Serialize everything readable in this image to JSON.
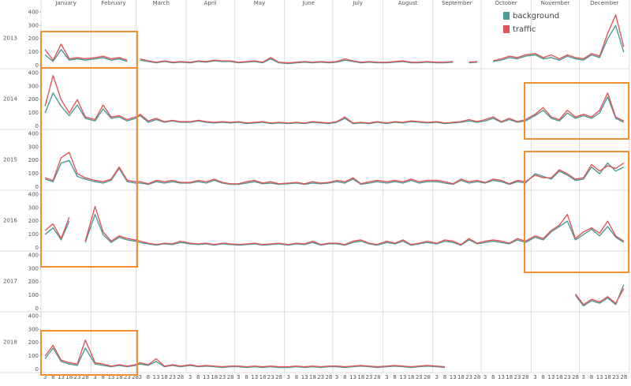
{
  "chart_data": {
    "type": "line",
    "categories": [
      "January",
      "February",
      "March",
      "April",
      "May",
      "June",
      "July",
      "August",
      "September",
      "October",
      "November",
      "December"
    ],
    "days": [
      3,
      8,
      13,
      18,
      23,
      28
    ],
    "ylim": [
      0,
      420
    ],
    "yticks": [
      0,
      100,
      200,
      300,
      400
    ],
    "legend": "top-right",
    "series": [
      {
        "name": "background",
        "color": "#4e9a96"
      },
      {
        "name": "traffic",
        "color": "#e15759"
      }
    ],
    "panels": [
      {
        "label": "2013",
        "series": [
          {
            "values": [
              80,
              30,
              120,
              40,
              50,
              40,
              50,
              60,
              40,
              50,
              30,
              null,
              40,
              30,
              20,
              30,
              20,
              25,
              20,
              30,
              25,
              35,
              30,
              30,
              20,
              25,
              30,
              20,
              50,
              20,
              15,
              20,
              25,
              20,
              25,
              20,
              25,
              40,
              30,
              20,
              25,
              20,
              20,
              25,
              30,
              20,
              20,
              25,
              20,
              20,
              25,
              null,
              20,
              25,
              null,
              30,
              40,
              60,
              50,
              70,
              80,
              50,
              60,
              40,
              70,
              50,
              40,
              80,
              60,
              200,
              300,
              100
            ]
          },
          {
            "values": [
              120,
              40,
              160,
              50,
              60,
              50,
              60,
              70,
              50,
              60,
              40,
              null,
              50,
              35,
              25,
              35,
              25,
              30,
              25,
              35,
              30,
              40,
              35,
              35,
              25,
              30,
              35,
              25,
              60,
              25,
              20,
              25,
              30,
              25,
              30,
              25,
              30,
              50,
              35,
              25,
              30,
              25,
              25,
              30,
              35,
              25,
              25,
              30,
              25,
              25,
              30,
              null,
              25,
              30,
              null,
              35,
              50,
              70,
              60,
              80,
              90,
              60,
              80,
              50,
              80,
              60,
              50,
              90,
              70,
              240,
              380,
              140
            ]
          }
        ]
      },
      {
        "label": "2014",
        "series": [
          {
            "values": [
              100,
              250,
              150,
              80,
              160,
              60,
              40,
              130,
              60,
              70,
              40,
              60,
              80,
              30,
              50,
              30,
              40,
              30,
              30,
              40,
              30,
              25,
              30,
              25,
              30,
              20,
              25,
              30,
              20,
              25,
              20,
              25,
              20,
              30,
              25,
              20,
              30,
              60,
              20,
              25,
              20,
              30,
              20,
              30,
              25,
              35,
              30,
              25,
              30,
              20,
              25,
              30,
              40,
              30,
              40,
              60,
              30,
              50,
              30,
              40,
              80,
              120,
              60,
              40,
              100,
              60,
              80,
              60,
              100,
              220,
              60,
              30
            ]
          },
          {
            "values": [
              150,
              380,
              200,
              100,
              200,
              70,
              50,
              160,
              70,
              80,
              50,
              70,
              90,
              40,
              60,
              35,
              45,
              35,
              35,
              45,
              35,
              30,
              35,
              30,
              35,
              25,
              30,
              35,
              25,
              30,
              25,
              30,
              25,
              35,
              30,
              25,
              35,
              70,
              25,
              30,
              25,
              35,
              25,
              35,
              30,
              40,
              35,
              30,
              35,
              25,
              30,
              35,
              50,
              35,
              50,
              70,
              35,
              60,
              35,
              50,
              90,
              140,
              70,
              50,
              120,
              70,
              90,
              70,
              120,
              250,
              70,
              40
            ]
          }
        ]
      },
      {
        "label": "2015",
        "series": [
          {
            "values": [
              60,
              40,
              180,
              200,
              80,
              60,
              40,
              30,
              50,
              140,
              40,
              30,
              30,
              20,
              40,
              30,
              40,
              30,
              30,
              40,
              30,
              50,
              30,
              20,
              20,
              30,
              40,
              25,
              30,
              20,
              25,
              30,
              20,
              30,
              25,
              30,
              40,
              30,
              60,
              20,
              30,
              40,
              30,
              40,
              30,
              50,
              30,
              40,
              40,
              30,
              20,
              50,
              30,
              40,
              30,
              50,
              40,
              20,
              40,
              30,
              100,
              80,
              60,
              120,
              90,
              50,
              60,
              150,
              100,
              180,
              120,
              150
            ]
          },
          {
            "values": [
              70,
              50,
              220,
              260,
              100,
              70,
              50,
              40,
              60,
              150,
              50,
              40,
              40,
              25,
              50,
              40,
              50,
              35,
              35,
              50,
              40,
              60,
              35,
              25,
              25,
              40,
              50,
              30,
              40,
              25,
              30,
              35,
              25,
              40,
              30,
              35,
              50,
              40,
              70,
              25,
              40,
              50,
              40,
              50,
              40,
              60,
              40,
              50,
              50,
              40,
              25,
              60,
              40,
              50,
              35,
              60,
              50,
              25,
              50,
              40,
              90,
              70,
              70,
              130,
              100,
              60,
              70,
              170,
              120,
              160,
              140,
              180
            ]
          }
        ]
      },
      {
        "label": "2016",
        "series": [
          {
            "values": [
              100,
              150,
              60,
              200,
              null,
              40,
              250,
              100,
              40,
              80,
              60,
              50,
              40,
              30,
              20,
              30,
              25,
              40,
              30,
              25,
              30,
              20,
              30,
              25,
              20,
              25,
              30,
              20,
              25,
              30,
              20,
              30,
              25,
              40,
              20,
              30,
              30,
              20,
              40,
              50,
              30,
              20,
              40,
              30,
              50,
              20,
              30,
              40,
              30,
              50,
              40,
              20,
              60,
              30,
              40,
              50,
              40,
              30,
              60,
              40,
              80,
              60,
              120,
              160,
              200,
              60,
              100,
              140,
              90,
              160,
              80,
              40
            ]
          },
          {
            "values": [
              130,
              180,
              70,
              230,
              null,
              50,
              310,
              120,
              50,
              90,
              70,
              60,
              50,
              35,
              25,
              35,
              30,
              50,
              35,
              30,
              35,
              25,
              35,
              30,
              25,
              30,
              35,
              25,
              30,
              35,
              25,
              35,
              30,
              50,
              25,
              35,
              35,
              25,
              50,
              60,
              35,
              25,
              50,
              35,
              60,
              25,
              35,
              50,
              35,
              60,
              50,
              25,
              70,
              35,
              50,
              60,
              50,
              35,
              70,
              50,
              90,
              70,
              130,
              170,
              250,
              70,
              120,
              150,
              110,
              200,
              90,
              50
            ]
          }
        ]
      },
      {
        "label": "2017",
        "series": [
          {
            "values": [
              null,
              null,
              null,
              null,
              null,
              null,
              null,
              null,
              null,
              null,
              null,
              null,
              null,
              null,
              null,
              null,
              null,
              null,
              null,
              null,
              null,
              null,
              null,
              null,
              null,
              null,
              null,
              null,
              null,
              null,
              null,
              null,
              null,
              null,
              null,
              null,
              null,
              null,
              null,
              null,
              null,
              null,
              null,
              null,
              null,
              null,
              null,
              null,
              null,
              null,
              null,
              null,
              null,
              null,
              null,
              null,
              null,
              null,
              null,
              null,
              null,
              null,
              null,
              null,
              null,
              100,
              20,
              60,
              40,
              80,
              30,
              180
            ]
          },
          {
            "values": [
              null,
              null,
              null,
              null,
              null,
              null,
              null,
              null,
              null,
              null,
              null,
              null,
              null,
              null,
              null,
              null,
              null,
              null,
              null,
              null,
              null,
              null,
              null,
              null,
              null,
              null,
              null,
              null,
              null,
              null,
              null,
              null,
              null,
              null,
              null,
              null,
              null,
              null,
              null,
              null,
              null,
              null,
              null,
              null,
              null,
              null,
              null,
              null,
              null,
              null,
              null,
              null,
              null,
              null,
              null,
              null,
              null,
              null,
              null,
              null,
              null,
              null,
              null,
              null,
              null,
              110,
              30,
              70,
              50,
              90,
              40,
              150
            ]
          }
        ]
      },
      {
        "label": "2018",
        "series": [
          {
            "values": [
              80,
              160,
              60,
              40,
              30,
              160,
              40,
              30,
              20,
              30,
              20,
              30,
              40,
              30,
              60,
              20,
              30,
              20,
              30,
              20,
              25,
              20,
              15,
              20,
              20,
              15,
              20,
              15,
              20,
              15,
              15,
              20,
              15,
              20,
              15,
              20,
              20,
              15,
              20,
              25,
              20,
              15,
              20,
              25,
              20,
              15,
              20,
              25,
              20,
              15,
              null,
              null,
              null,
              null,
              null,
              null,
              null,
              null,
              null,
              null,
              null,
              null,
              null,
              null,
              null,
              null,
              null,
              null,
              null,
              null,
              null,
              null
            ]
          },
          {
            "values": [
              100,
              180,
              70,
              50,
              40,
              220,
              50,
              40,
              25,
              35,
              25,
              35,
              50,
              35,
              80,
              25,
              35,
              25,
              35,
              25,
              30,
              25,
              20,
              25,
              25,
              20,
              25,
              20,
              25,
              20,
              20,
              25,
              20,
              25,
              20,
              25,
              25,
              20,
              25,
              30,
              25,
              20,
              25,
              30,
              25,
              20,
              25,
              30,
              25,
              20,
              null,
              null,
              null,
              null,
              null,
              null,
              null,
              null,
              null,
              null,
              null,
              null,
              null,
              null,
              null,
              null,
              null,
              null,
              null,
              null,
              null,
              null
            ]
          }
        ]
      }
    ]
  }
}
